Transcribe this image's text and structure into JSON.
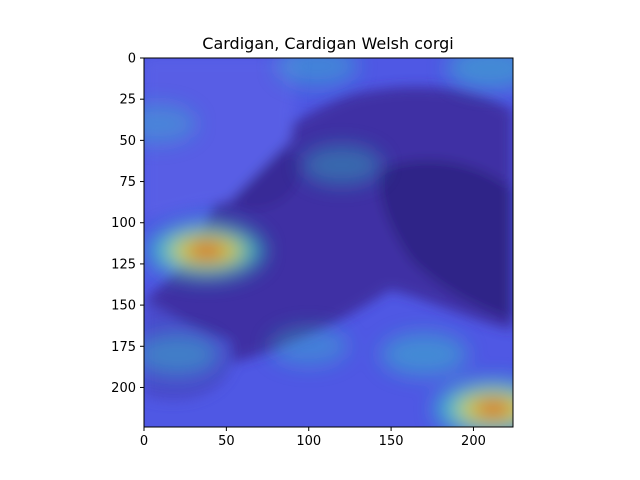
{
  "chart_data": {
    "type": "heatmap",
    "title": "Cardigan, Cardigan Welsh corgi",
    "xlabel": "",
    "ylabel": "",
    "xlim": [
      0,
      224
    ],
    "ylim": [
      224,
      0
    ],
    "x_ticks": [
      0,
      50,
      100,
      150,
      200
    ],
    "y_ticks": [
      0,
      25,
      50,
      75,
      100,
      125,
      150,
      175,
      200
    ],
    "grid": false,
    "colormap": "jet",
    "overlay": "saliency heatmap over photo of a dog's head in profile",
    "hotspots": [
      {
        "x": 38,
        "y": 117,
        "intensity": 1.0
      },
      {
        "x": 212,
        "y": 213,
        "intensity": 1.0
      },
      {
        "x": 170,
        "y": 180,
        "intensity": 0.45
      },
      {
        "x": 20,
        "y": 180,
        "intensity": 0.4
      },
      {
        "x": 210,
        "y": 6,
        "intensity": 0.45
      },
      {
        "x": 105,
        "y": 5,
        "intensity": 0.35
      },
      {
        "x": 120,
        "y": 65,
        "intensity": 0.35
      },
      {
        "x": 100,
        "y": 175,
        "intensity": 0.3
      },
      {
        "x": 8,
        "y": 40,
        "intensity": 0.3
      }
    ],
    "colors": {
      "low": "#2a1fd0",
      "mid": "#2fd8c0",
      "high": "#d81010"
    }
  }
}
